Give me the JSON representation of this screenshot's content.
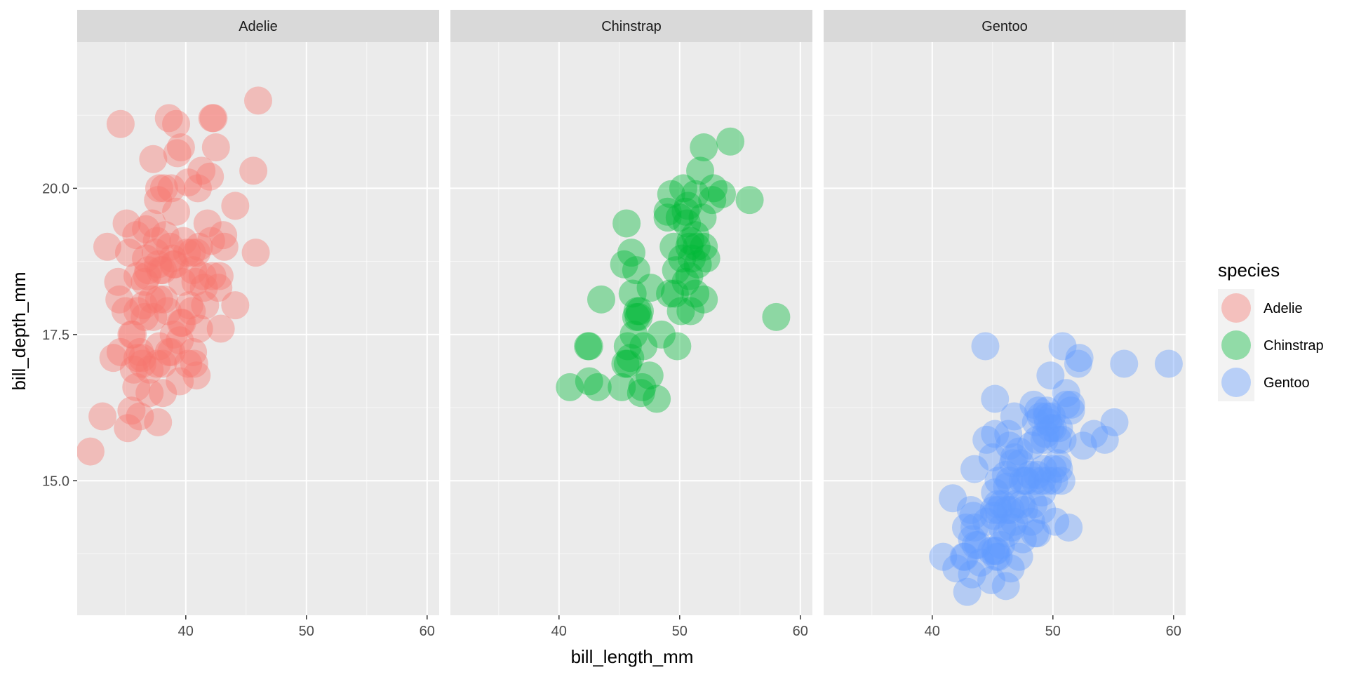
{
  "chart_data": {
    "type": "scatter",
    "xlabel": "bill_length_mm",
    "ylabel": "bill_depth_mm",
    "xlim": [
      31.0,
      61.0
    ],
    "ylim": [
      12.7,
      22.5
    ],
    "x_ticks": [
      40,
      50,
      60
    ],
    "x_tick_labels": [
      "40",
      "50",
      "60"
    ],
    "y_ticks": [
      15.0,
      17.5,
      20.0
    ],
    "y_tick_labels": [
      "15.0",
      "17.5",
      "20.0"
    ],
    "grid": true,
    "facets": [
      "Adelie",
      "Chinstrap",
      "Gentoo"
    ],
    "legend": {
      "title": "species",
      "position": "right",
      "entries": [
        "Adelie",
        "Chinstrap",
        "Gentoo"
      ]
    },
    "colors": {
      "Adelie": "#F8766D",
      "Chinstrap": "#00BA38",
      "Gentoo": "#619CFF",
      "panel_bg": "#EBEBEB",
      "strip_bg": "#D9D9D9",
      "grid": "#FFFFFF"
    },
    "series": [
      {
        "name": "Adelie",
        "points": [
          [
            32.1,
            15.5
          ],
          [
            33.1,
            16.1
          ],
          [
            33.5,
            19.0
          ],
          [
            34.0,
            17.1
          ],
          [
            34.4,
            18.4
          ],
          [
            34.5,
            18.1
          ],
          [
            34.6,
            21.1
          ],
          [
            34.6,
            17.2
          ],
          [
            35.0,
            17.9
          ],
          [
            35.1,
            19.4
          ],
          [
            35.2,
            15.9
          ],
          [
            35.3,
            18.9
          ],
          [
            35.5,
            17.5
          ],
          [
            35.5,
            16.2
          ],
          [
            35.6,
            17.5
          ],
          [
            35.7,
            16.9
          ],
          [
            35.9,
            16.6
          ],
          [
            35.9,
            19.2
          ],
          [
            36.0,
            17.1
          ],
          [
            36.0,
            18.5
          ],
          [
            36.0,
            17.9
          ],
          [
            36.2,
            16.1
          ],
          [
            36.2,
            17.2
          ],
          [
            36.4,
            17.0
          ],
          [
            36.4,
            17.1
          ],
          [
            36.5,
            18.0
          ],
          [
            36.6,
            17.8
          ],
          [
            36.6,
            18.4
          ],
          [
            36.7,
            19.3
          ],
          [
            36.7,
            18.8
          ],
          [
            36.8,
            18.5
          ],
          [
            36.9,
            18.6
          ],
          [
            37.0,
            16.9
          ],
          [
            37.0,
            16.5
          ],
          [
            37.2,
            18.1
          ],
          [
            37.2,
            19.4
          ],
          [
            37.3,
            17.8
          ],
          [
            37.3,
            20.5
          ],
          [
            37.5,
            18.9
          ],
          [
            37.6,
            17.0
          ],
          [
            37.6,
            19.1
          ],
          [
            37.7,
            18.7
          ],
          [
            37.7,
            16.0
          ],
          [
            37.7,
            19.8
          ],
          [
            37.8,
            17.3
          ],
          [
            37.8,
            18.1
          ],
          [
            37.8,
            20.0
          ],
          [
            37.9,
            18.6
          ],
          [
            38.1,
            18.6
          ],
          [
            38.1,
            17.0
          ],
          [
            38.1,
            16.5
          ],
          [
            38.2,
            18.1
          ],
          [
            38.2,
            20.0
          ],
          [
            38.3,
            19.2
          ],
          [
            38.5,
            17.9
          ],
          [
            38.6,
            21.2
          ],
          [
            38.6,
            17.2
          ],
          [
            38.7,
            19.0
          ],
          [
            38.8,
            17.2
          ],
          [
            38.8,
            20.0
          ],
          [
            38.9,
            18.8
          ],
          [
            39.0,
            17.5
          ],
          [
            39.0,
            18.7
          ],
          [
            39.1,
            18.7
          ],
          [
            39.2,
            19.6
          ],
          [
            39.2,
            21.1
          ],
          [
            39.3,
            20.6
          ],
          [
            39.5,
            17.4
          ],
          [
            39.5,
            16.7
          ],
          [
            39.6,
            17.7
          ],
          [
            39.6,
            20.7
          ],
          [
            39.7,
            18.4
          ],
          [
            39.7,
            17.7
          ],
          [
            39.8,
            19.1
          ],
          [
            40.1,
            18.9
          ],
          [
            40.2,
            17.0
          ],
          [
            40.2,
            20.1
          ],
          [
            40.3,
            18.0
          ],
          [
            40.5,
            17.9
          ],
          [
            40.5,
            18.9
          ],
          [
            40.6,
            18.6
          ],
          [
            40.6,
            17.2
          ],
          [
            40.7,
            17.0
          ],
          [
            40.8,
            18.4
          ],
          [
            40.9,
            16.8
          ],
          [
            40.9,
            18.9
          ],
          [
            41.0,
            20.0
          ],
          [
            41.1,
            17.6
          ],
          [
            41.1,
            19.0
          ],
          [
            41.3,
            20.3
          ],
          [
            41.4,
            18.5
          ],
          [
            41.5,
            18.3
          ],
          [
            41.6,
            18.0
          ],
          [
            41.8,
            19.4
          ],
          [
            42.0,
            20.2
          ],
          [
            42.1,
            19.1
          ],
          [
            42.2,
            18.5
          ],
          [
            42.2,
            21.2
          ],
          [
            42.3,
            21.2
          ],
          [
            42.5,
            20.7
          ],
          [
            42.7,
            18.3
          ],
          [
            42.8,
            18.5
          ],
          [
            42.9,
            17.6
          ],
          [
            43.1,
            19.2
          ],
          [
            43.2,
            19.0
          ],
          [
            44.1,
            19.7
          ],
          [
            44.1,
            18.0
          ],
          [
            45.6,
            20.3
          ],
          [
            45.8,
            18.9
          ],
          [
            46.0,
            21.5
          ]
        ]
      },
      {
        "name": "Chinstrap",
        "points": [
          [
            40.9,
            16.6
          ],
          [
            42.4,
            17.3
          ],
          [
            42.5,
            17.3
          ],
          [
            42.5,
            16.7
          ],
          [
            43.2,
            16.6
          ],
          [
            43.5,
            18.1
          ],
          [
            45.2,
            16.6
          ],
          [
            45.4,
            18.7
          ],
          [
            45.5,
            17.0
          ],
          [
            45.6,
            19.4
          ],
          [
            45.7,
            17.3
          ],
          [
            45.7,
            17.0
          ],
          [
            45.9,
            17.1
          ],
          [
            46.0,
            18.9
          ],
          [
            46.1,
            18.2
          ],
          [
            46.2,
            17.5
          ],
          [
            46.4,
            18.6
          ],
          [
            46.4,
            17.8
          ],
          [
            46.5,
            17.9
          ],
          [
            46.6,
            17.8
          ],
          [
            46.7,
            17.9
          ],
          [
            46.8,
            16.5
          ],
          [
            46.9,
            16.6
          ],
          [
            47.0,
            17.3
          ],
          [
            47.5,
            16.8
          ],
          [
            47.6,
            18.3
          ],
          [
            48.1,
            16.4
          ],
          [
            48.5,
            17.5
          ],
          [
            49.0,
            19.5
          ],
          [
            49.0,
            19.6
          ],
          [
            49.2,
            18.2
          ],
          [
            49.3,
            19.9
          ],
          [
            49.5,
            19.0
          ],
          [
            49.6,
            18.2
          ],
          [
            49.7,
            18.6
          ],
          [
            49.8,
            17.3
          ],
          [
            50.0,
            19.5
          ],
          [
            50.1,
            17.9
          ],
          [
            50.2,
            18.8
          ],
          [
            50.3,
            20.0
          ],
          [
            50.5,
            18.4
          ],
          [
            50.5,
            19.6
          ],
          [
            50.6,
            19.4
          ],
          [
            50.7,
            19.7
          ],
          [
            50.8,
            18.5
          ],
          [
            50.8,
            19.0
          ],
          [
            50.9,
            17.9
          ],
          [
            50.9,
            19.1
          ],
          [
            51.0,
            18.8
          ],
          [
            51.3,
            19.2
          ],
          [
            51.3,
            19.9
          ],
          [
            51.3,
            18.2
          ],
          [
            51.4,
            19.0
          ],
          [
            51.5,
            18.7
          ],
          [
            51.7,
            20.3
          ],
          [
            51.9,
            19.5
          ],
          [
            52.0,
            18.1
          ],
          [
            52.0,
            20.7
          ],
          [
            52.0,
            19.0
          ],
          [
            52.2,
            18.8
          ],
          [
            52.7,
            19.8
          ],
          [
            52.8,
            20.0
          ],
          [
            53.5,
            19.9
          ],
          [
            54.2,
            20.8
          ],
          [
            55.8,
            19.8
          ],
          [
            58.0,
            17.8
          ]
        ]
      },
      {
        "name": "Gentoo",
        "points": [
          [
            40.9,
            13.7
          ],
          [
            41.7,
            14.7
          ],
          [
            42.0,
            13.5
          ],
          [
            42.6,
            13.7
          ],
          [
            42.7,
            13.7
          ],
          [
            42.8,
            14.2
          ],
          [
            42.9,
            13.1
          ],
          [
            43.2,
            14.5
          ],
          [
            43.3,
            13.4
          ],
          [
            43.3,
            14.0
          ],
          [
            43.4,
            14.4
          ],
          [
            43.5,
            14.2
          ],
          [
            43.5,
            15.2
          ],
          [
            43.6,
            13.9
          ],
          [
            43.8,
            13.9
          ],
          [
            44.0,
            13.6
          ],
          [
            44.4,
            17.3
          ],
          [
            44.5,
            14.3
          ],
          [
            44.5,
            15.7
          ],
          [
            44.9,
            13.8
          ],
          [
            44.9,
            13.3
          ],
          [
            45.0,
            15.4
          ],
          [
            45.1,
            14.5
          ],
          [
            45.1,
            14.4
          ],
          [
            45.2,
            14.8
          ],
          [
            45.2,
            13.8
          ],
          [
            45.2,
            16.4
          ],
          [
            45.2,
            15.8
          ],
          [
            45.3,
            13.8
          ],
          [
            45.3,
            13.7
          ],
          [
            45.4,
            14.6
          ],
          [
            45.5,
            13.7
          ],
          [
            45.5,
            14.5
          ],
          [
            45.5,
            15.0
          ],
          [
            45.7,
            13.9
          ],
          [
            45.8,
            14.6
          ],
          [
            45.8,
            14.2
          ],
          [
            46.1,
            13.2
          ],
          [
            46.1,
            15.1
          ],
          [
            46.2,
            14.5
          ],
          [
            46.2,
            14.9
          ],
          [
            46.2,
            14.1
          ],
          [
            46.3,
            15.8
          ],
          [
            46.4,
            15.0
          ],
          [
            46.4,
            15.6
          ],
          [
            46.5,
            14.5
          ],
          [
            46.5,
            13.5
          ],
          [
            46.6,
            14.2
          ],
          [
            46.7,
            15.3
          ],
          [
            46.8,
            16.1
          ],
          [
            46.8,
            14.3
          ],
          [
            46.8,
            15.4
          ],
          [
            46.9,
            14.6
          ],
          [
            47.2,
            13.7
          ],
          [
            47.2,
            15.5
          ],
          [
            47.3,
            15.3
          ],
          [
            47.4,
            14.6
          ],
          [
            47.5,
            14.0
          ],
          [
            47.5,
            15.0
          ],
          [
            47.6,
            14.5
          ],
          [
            47.7,
            15.0
          ],
          [
            47.8,
            15.0
          ],
          [
            48.1,
            15.1
          ],
          [
            48.2,
            14.3
          ],
          [
            48.2,
            15.6
          ],
          [
            48.4,
            14.6
          ],
          [
            48.4,
            16.3
          ],
          [
            48.5,
            14.1
          ],
          [
            48.5,
            15.0
          ],
          [
            48.6,
            16.0
          ],
          [
            48.7,
            14.1
          ],
          [
            48.7,
            15.1
          ],
          [
            48.7,
            15.7
          ],
          [
            48.8,
            16.2
          ],
          [
            49.0,
            16.1
          ],
          [
            49.1,
            14.5
          ],
          [
            49.1,
            14.8
          ],
          [
            49.1,
            15.0
          ],
          [
            49.2,
            15.2
          ],
          [
            49.3,
            15.7
          ],
          [
            49.4,
            15.8
          ],
          [
            49.5,
            16.2
          ],
          [
            49.5,
            16.1
          ],
          [
            49.6,
            16.0
          ],
          [
            49.6,
            15.0
          ],
          [
            49.8,
            16.8
          ],
          [
            49.8,
            15.9
          ],
          [
            49.9,
            16.1
          ],
          [
            50.0,
            15.2
          ],
          [
            50.0,
            15.9
          ],
          [
            50.1,
            15.0
          ],
          [
            50.2,
            14.3
          ],
          [
            50.4,
            15.3
          ],
          [
            50.4,
            15.7
          ],
          [
            50.5,
            15.9
          ],
          [
            50.5,
            15.2
          ],
          [
            50.7,
            15.0
          ],
          [
            50.8,
            15.7
          ],
          [
            50.8,
            17.3
          ],
          [
            51.1,
            16.3
          ],
          [
            51.1,
            16.5
          ],
          [
            51.3,
            14.2
          ],
          [
            51.5,
            16.3
          ],
          [
            51.5,
            16.2
          ],
          [
            52.1,
            17.0
          ],
          [
            52.2,
            17.1
          ],
          [
            52.5,
            15.6
          ],
          [
            53.4,
            15.8
          ],
          [
            54.3,
            15.7
          ],
          [
            55.1,
            16.0
          ],
          [
            55.9,
            17.0
          ],
          [
            59.6,
            17.0
          ]
        ]
      }
    ]
  }
}
